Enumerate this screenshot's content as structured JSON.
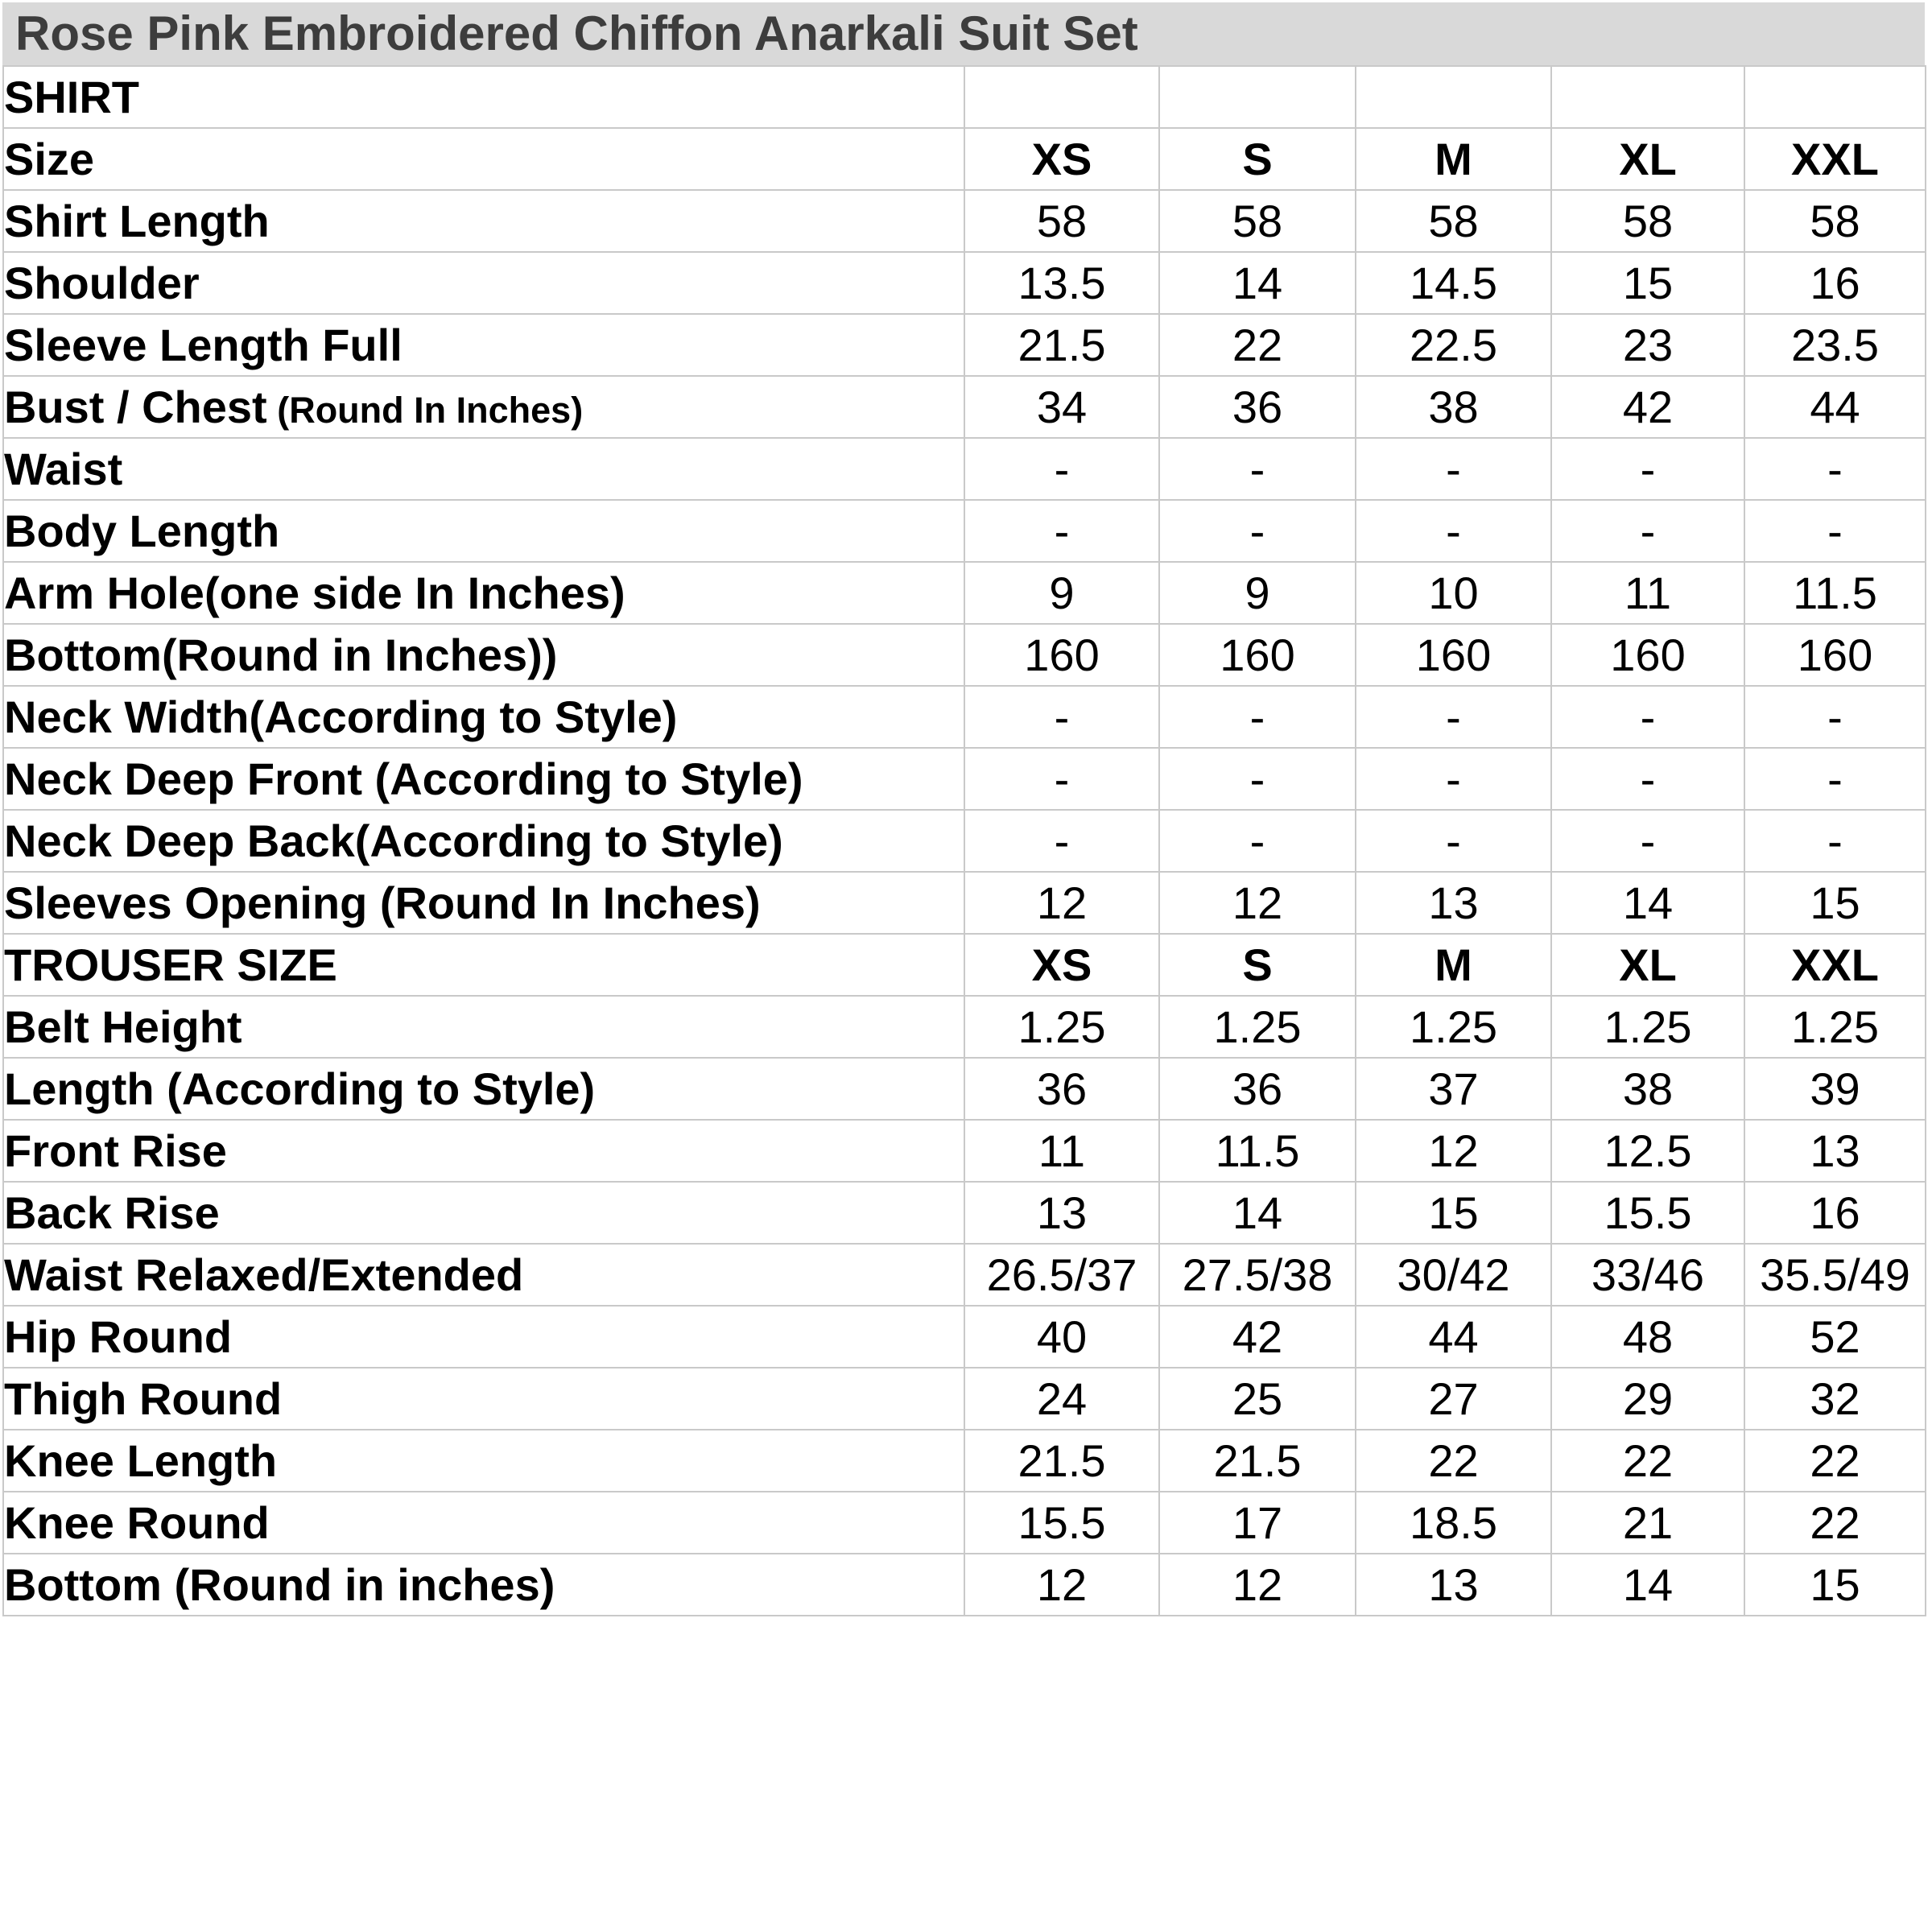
{
  "title": "Rose Pink Embroidered Chiffon Anarkali Suit Set",
  "sizes": [
    "XS",
    "S",
    "M",
    "XL",
    "XXL"
  ],
  "colors": {
    "title_bg": "#d9d9d9",
    "title_text": "#3d3d3d",
    "grid_line": "#c9c9c9",
    "cell_bg": "#ffffff",
    "cell_text": "#000000"
  },
  "rows": [
    {
      "label": "SHIRT",
      "style": "section",
      "values": [
        "",
        "",
        "",
        "",
        ""
      ]
    },
    {
      "label": "Size",
      "style": "header",
      "values": [
        "XS",
        "S",
        "M",
        "XL",
        "XXL"
      ]
    },
    {
      "label": "Shirt Length",
      "style": "data",
      "values": [
        "58",
        "58",
        "58",
        "58",
        "58"
      ]
    },
    {
      "label": "Shoulder",
      "style": "data",
      "values": [
        "13.5",
        "14",
        "14.5",
        "15",
        "16"
      ]
    },
    {
      "label": "Sleeve Length Full",
      "style": "data",
      "values": [
        "21.5",
        "22",
        "22.5",
        "23",
        "23.5"
      ]
    },
    {
      "label": "Bust / Chest",
      "label_suffix": " (Round In Inches)",
      "style": "data",
      "values": [
        "34",
        "36",
        "38",
        "42",
        "44"
      ]
    },
    {
      "label": "Waist",
      "style": "data",
      "values": [
        "-",
        "-",
        "-",
        "-",
        "-"
      ]
    },
    {
      "label": "Body Length",
      "style": "data",
      "values": [
        "-",
        "-",
        "-",
        "-",
        "-"
      ]
    },
    {
      "label": "Arm Hole(one side In Inches)",
      "style": "data",
      "values": [
        "9",
        "9",
        "10",
        "11",
        "11.5"
      ]
    },
    {
      "label": "Bottom(Round in Inches))",
      "style": "data",
      "values": [
        "160",
        "160",
        "160",
        "160",
        "160"
      ]
    },
    {
      "label": "Neck Width(According to Style)",
      "style": "data",
      "values": [
        "-",
        "-",
        "-",
        "-",
        "-"
      ]
    },
    {
      "label": "Neck Deep Front (According to Style)",
      "style": "data",
      "values": [
        "-",
        "-",
        "-",
        "-",
        "-"
      ]
    },
    {
      "label": "Neck Deep Back(According to Style)",
      "style": "data",
      "values": [
        "-",
        "-",
        "-",
        "-",
        "-"
      ]
    },
    {
      "label": "Sleeves Opening (Round In Inches)",
      "style": "data",
      "values": [
        "12",
        "12",
        "13",
        "14",
        "15"
      ]
    },
    {
      "label": "TROUSER SIZE",
      "style": "header",
      "values": [
        "XS",
        "S",
        "M",
        "XL",
        "XXL"
      ]
    },
    {
      "label": "Belt Height",
      "style": "data",
      "values": [
        "1.25",
        "1.25",
        "1.25",
        "1.25",
        "1.25"
      ]
    },
    {
      "label": "Length (According to Style)",
      "style": "data",
      "values": [
        "36",
        "36",
        "37",
        "38",
        "39"
      ]
    },
    {
      "label": "Front Rise",
      "style": "data",
      "values": [
        "11",
        "11.5",
        "12",
        "12.5",
        "13"
      ]
    },
    {
      "label": "Back Rise",
      "style": "data",
      "values": [
        "13",
        "14",
        "15",
        "15.5",
        "16"
      ]
    },
    {
      "label": "Waist Relaxed/Extended",
      "style": "data",
      "values": [
        "26.5/37",
        "27.5/38",
        "30/42",
        "33/46",
        "35.5/49"
      ]
    },
    {
      "label": "Hip Round",
      "style": "data",
      "values": [
        "40",
        "42",
        "44",
        "48",
        "52"
      ]
    },
    {
      "label": "Thigh Round",
      "style": "data",
      "values": [
        "24",
        "25",
        "27",
        "29",
        "32"
      ]
    },
    {
      "label": "Knee Length",
      "style": "data",
      "values": [
        "21.5",
        "21.5",
        "22",
        "22",
        "22"
      ]
    },
    {
      "label": "Knee Round",
      "style": "data",
      "values": [
        "15.5",
        "17",
        "18.5",
        "21",
        "22"
      ]
    },
    {
      "label": "Bottom (Round in inches)",
      "style": "data",
      "values": [
        "12",
        "12",
        "13",
        "14",
        "15"
      ]
    }
  ]
}
